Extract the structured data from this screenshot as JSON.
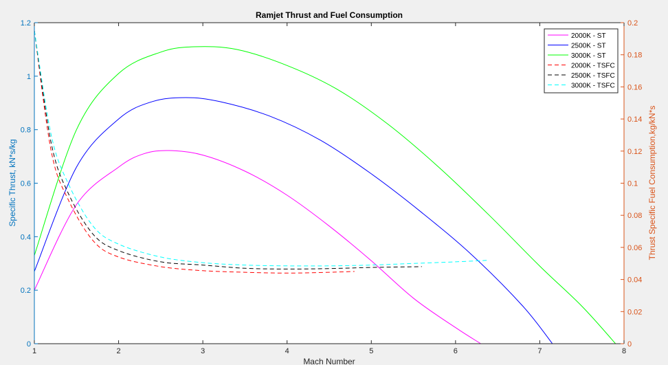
{
  "chart_data": {
    "type": "line",
    "title": "Ramjet Thrust and Fuel Consumption",
    "xlabel": "Mach Number",
    "ylabel_left": "Specific Thrust, kN*s/kg",
    "ylabel_right": "Thrust Specific Fuel Consumption,kg/kN*s",
    "xlim": [
      1,
      8
    ],
    "ylim_left": [
      0,
      1.2
    ],
    "ylim_right": [
      0,
      0.2
    ],
    "xticks": [
      "1",
      "2",
      "3",
      "4",
      "5",
      "6",
      "7",
      "8"
    ],
    "yticks_left": [
      "0",
      "0.2",
      "0.4",
      "0.6",
      "0.8",
      "1",
      "1.2"
    ],
    "yticks_right": [
      "0",
      "0.02",
      "0.04",
      "0.06",
      "0.08",
      "0.1",
      "0.12",
      "0.14",
      "0.16",
      "0.18",
      "0.2"
    ],
    "grid": false,
    "legend_position": "top-right",
    "colors": {
      "left_axis": "#0072BD",
      "right_axis": "#D95319",
      "axes_bg": "#ffffff",
      "figure_bg": "#f0f0f0"
    },
    "series": [
      {
        "name": "2000K - ST",
        "axis": "left",
        "color": "#ff00ff",
        "dash": "solid",
        "x": [
          1,
          1.5,
          2,
          2.3,
          2.6,
          3,
          3.5,
          4,
          4.5,
          5,
          5.5,
          6,
          6.3
        ],
        "y": [
          0.2,
          0.52,
          0.66,
          0.71,
          0.722,
          0.705,
          0.645,
          0.555,
          0.44,
          0.31,
          0.17,
          0.06,
          0
        ]
      },
      {
        "name": "2500K - ST",
        "axis": "left",
        "color": "#0000ff",
        "dash": "solid",
        "x": [
          1,
          1.5,
          2,
          2.4,
          2.8,
          3.2,
          3.8,
          4.4,
          5,
          5.6,
          6.2,
          6.8,
          7.15
        ],
        "y": [
          0.27,
          0.66,
          0.84,
          0.905,
          0.92,
          0.905,
          0.85,
          0.76,
          0.635,
          0.49,
          0.33,
          0.14,
          0
        ]
      },
      {
        "name": "3000K - ST",
        "axis": "left",
        "color": "#00ff00",
        "dash": "solid",
        "x": [
          1,
          1.5,
          2,
          2.5,
          2.9,
          3.4,
          4,
          4.6,
          5.2,
          5.8,
          6.4,
          7,
          7.5,
          7.9
        ],
        "y": [
          0.33,
          0.8,
          1.01,
          1.09,
          1.11,
          1.1,
          1.04,
          0.95,
          0.82,
          0.66,
          0.48,
          0.29,
          0.14,
          0
        ]
      },
      {
        "name": "2000K - TSFC",
        "axis": "right",
        "color": "#ff0000",
        "dash": "dashed",
        "x": [
          1,
          1.2,
          1.4,
          1.7,
          2,
          2.5,
          3,
          3.5,
          4,
          4.5,
          4.8
        ],
        "y": [
          0.195,
          0.12,
          0.09,
          0.064,
          0.054,
          0.048,
          0.0455,
          0.0445,
          0.044,
          0.0445,
          0.045
        ]
      },
      {
        "name": "2500K - TSFC",
        "axis": "right",
        "color": "#000000",
        "dash": "dashed",
        "x": [
          1,
          1.2,
          1.4,
          1.7,
          2,
          2.5,
          3,
          3.5,
          4,
          4.5,
          5,
          5.6
        ],
        "y": [
          0.195,
          0.125,
          0.094,
          0.068,
          0.058,
          0.051,
          0.049,
          0.047,
          0.0465,
          0.0468,
          0.0475,
          0.048
        ]
      },
      {
        "name": "3000K - TSFC",
        "axis": "right",
        "color": "#00ffff",
        "dash": "dashed",
        "x": [
          1,
          1.2,
          1.4,
          1.7,
          2,
          2.5,
          3,
          3.5,
          4,
          4.5,
          5,
          5.5,
          6,
          6.4
        ],
        "y": [
          0.195,
          0.13,
          0.1,
          0.073,
          0.062,
          0.054,
          0.0505,
          0.049,
          0.0485,
          0.0485,
          0.049,
          0.05,
          0.051,
          0.052
        ]
      }
    ]
  }
}
